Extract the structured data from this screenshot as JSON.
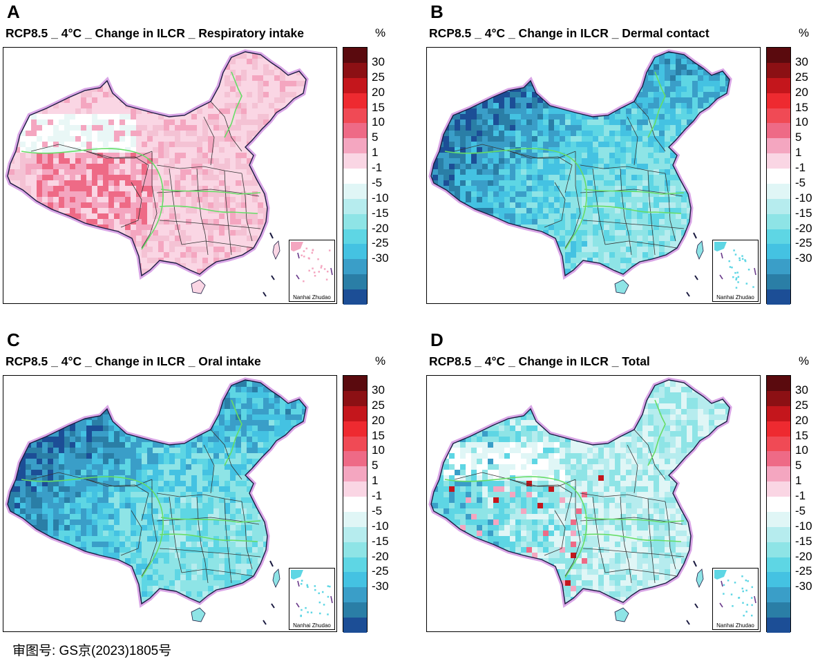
{
  "panels": [
    {
      "letter": "A",
      "title": "RCP8.5 _ 4°C _ Change in ILCR _ Respiratory intake",
      "scheme": "warm"
    },
    {
      "letter": "B",
      "title": "RCP8.5 _ 4°C _ Change in ILCR _ Dermal contact",
      "scheme": "cool"
    },
    {
      "letter": "C",
      "title": "RCP8.5 _ 4°C _ Change in ILCR _ Oral intake",
      "scheme": "cool"
    },
    {
      "letter": "D",
      "title": "RCP8.5 _ 4°C _ Change in ILCR _ Total",
      "scheme": "mixed"
    }
  ],
  "unit": "%",
  "inset_label": "Nanhai Zhudao",
  "legend": {
    "ticks": [
      "30",
      "25",
      "20",
      "15",
      "10",
      "5",
      "1",
      "-1",
      "-5",
      "-10",
      "-15",
      "-20",
      "-25",
      "-30"
    ],
    "colors": [
      "#5a0a0e",
      "#8c1014",
      "#c4161c",
      "#ee2a30",
      "#f04a55",
      "#ee6a86",
      "#f4a6c0",
      "#fad6e4",
      "#ffffff",
      "#e0f6f6",
      "#b6ecee",
      "#8ee4e6",
      "#5ed6e4",
      "#44c2e2",
      "#3a9ec8",
      "#2a7ea6",
      "#1c4e96"
    ]
  },
  "colors": {
    "border_glow": "#d9a6e6",
    "divide_line": "#66dd66",
    "province_line": "#333333"
  },
  "footer": "审图号: GS京(2023)1805号"
}
